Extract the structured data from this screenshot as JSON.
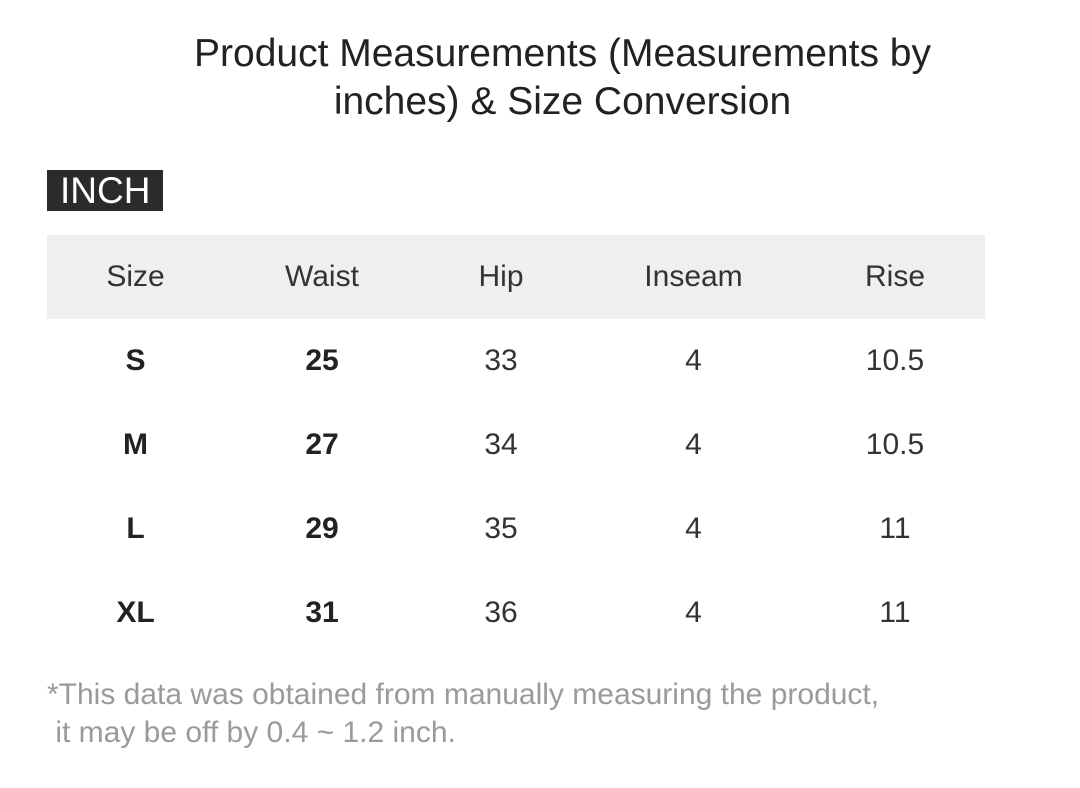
{
  "title": {
    "line1": "Product Measurements (Measurements by",
    "line2": "inches) & Size Conversion"
  },
  "unit_badge": "INCH",
  "table": {
    "headers": [
      "Size",
      "Waist",
      "Hip",
      "Inseam",
      "Rise"
    ],
    "rows": [
      [
        "S",
        "25",
        "33",
        "4",
        "10.5"
      ],
      [
        "M",
        "27",
        "34",
        "4",
        "10.5"
      ],
      [
        "L",
        "29",
        "35",
        "4",
        "11"
      ],
      [
        "XL",
        "31",
        "36",
        "4",
        "11"
      ]
    ]
  },
  "note": {
    "line1": "*This data was obtained from manually measuring the product,",
    "line2": " it may be off by 0.4 ~ 1.2 inch."
  },
  "colors": {
    "header_background": "#efefef",
    "badge_background": "#2b2b2b",
    "note_text": "#9a9a9a"
  }
}
